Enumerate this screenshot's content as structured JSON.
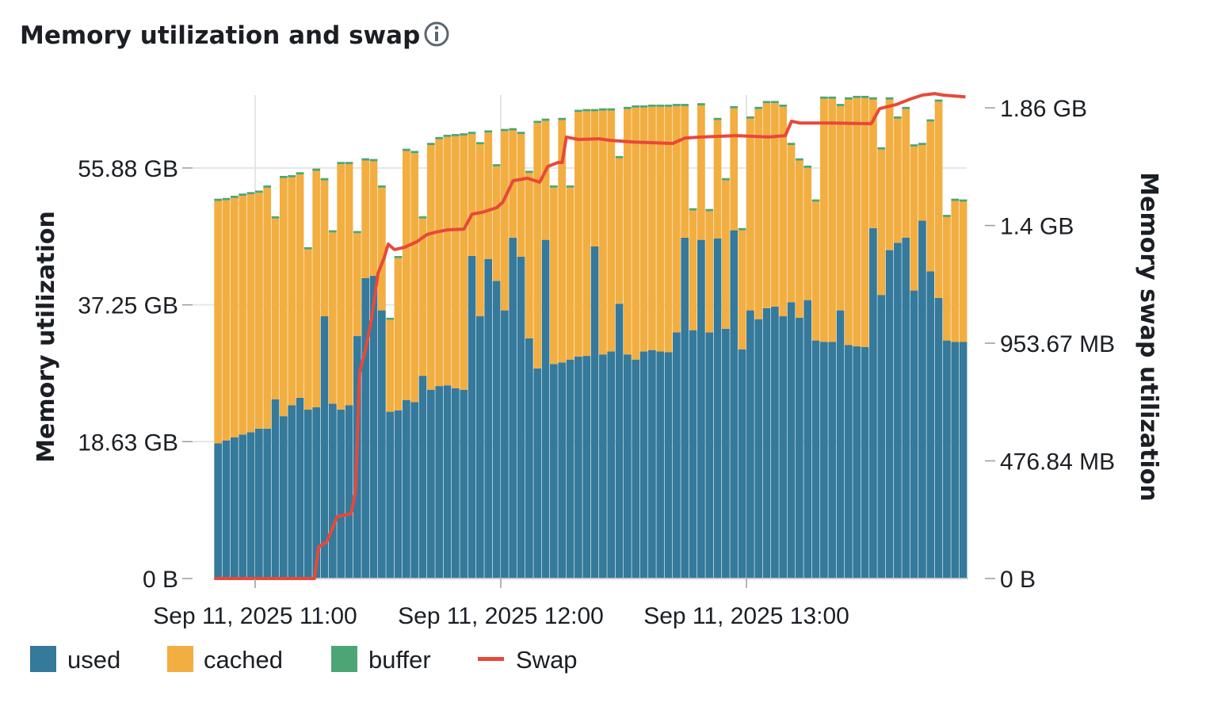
{
  "title": "Memory utilization and swap",
  "info_icon": "info-circle-icon",
  "chart_data": {
    "type": "bar",
    "stacked": true,
    "left_axis": {
      "label": "Memory utilization",
      "unit": "GB",
      "ticks": [
        0,
        18.63,
        37.25,
        55.88
      ],
      "tick_labels": [
        "0 B",
        "18.63 GB",
        "37.25 GB",
        "55.88 GB"
      ],
      "range": [
        0,
        65.8
      ]
    },
    "right_axis": {
      "label": "Memory swap utilization",
      "unit": "MB",
      "ticks": [
        0,
        476.84,
        953.67,
        1430.51,
        1907.35
      ],
      "tick_labels": [
        "0 B",
        "476.84 MB",
        "953.67 MB",
        "1.4 GB",
        "1.86 GB"
      ],
      "range": [
        0,
        1959
      ]
    },
    "x_axis": {
      "ticks": [
        "11:00",
        "12:00",
        "13:00"
      ],
      "tick_labels": [
        "Sep 11, 2025 11:00",
        "Sep 11, 2025 12:00",
        "Sep 11, 2025 13:00"
      ],
      "range": [
        "10:50",
        "13:54"
      ]
    },
    "grid": true,
    "legend_position": "bottom-left",
    "times": [
      "10:50",
      "10:52",
      "10:54",
      "10:56",
      "10:58",
      "11:00",
      "11:02",
      "11:04",
      "11:06",
      "11:08",
      "11:10",
      "11:12",
      "11:14",
      "11:16",
      "11:18",
      "11:20",
      "11:22",
      "11:24",
      "11:26",
      "11:28",
      "11:30",
      "11:32",
      "11:34",
      "11:36",
      "11:38",
      "11:40",
      "11:42",
      "11:44",
      "11:46",
      "11:48",
      "11:50",
      "11:52",
      "11:54",
      "11:56",
      "11:58",
      "12:00",
      "12:02",
      "12:04",
      "12:06",
      "12:08",
      "12:10",
      "12:12",
      "12:14",
      "12:16",
      "12:18",
      "12:20",
      "12:22",
      "12:24",
      "12:26",
      "12:28",
      "12:30",
      "12:32",
      "12:34",
      "12:36",
      "12:38",
      "12:40",
      "12:42",
      "12:44",
      "12:46",
      "12:48",
      "12:50",
      "12:52",
      "12:54",
      "12:56",
      "12:58",
      "13:00",
      "13:02",
      "13:04",
      "13:06",
      "13:08",
      "13:10",
      "13:12",
      "13:14",
      "13:16",
      "13:18",
      "13:20",
      "13:22",
      "13:24",
      "13:26",
      "13:28",
      "13:30",
      "13:32",
      "13:34",
      "13:36",
      "13:38",
      "13:40",
      "13:42",
      "13:44",
      "13:46",
      "13:48",
      "13:50",
      "13:52"
    ],
    "series": [
      {
        "name": "used",
        "color": "#35799b",
        "axis": "left",
        "values": [
          18.4,
          18.8,
          19.2,
          19.6,
          19.9,
          20.4,
          20.4,
          24.4,
          22.1,
          23.6,
          24.6,
          23.0,
          23.3,
          35.7,
          23.8,
          23.0,
          23.6,
          33.0,
          40.9,
          41.2,
          36.5,
          22.7,
          22.9,
          24.3,
          24.0,
          27.6,
          25.7,
          26.2,
          26.3,
          25.9,
          25.7,
          43.9,
          35.7,
          43.5,
          40.5,
          36.5,
          46.4,
          43.8,
          32.7,
          28.6,
          46.1,
          29.2,
          29.4,
          29.8,
          30.2,
          30.3,
          45.2,
          30.5,
          30.9,
          37.4,
          30.5,
          29.8,
          30.9,
          31.1,
          30.9,
          30.8,
          33.5,
          46.4,
          33.8,
          46.1,
          33.5,
          46.3,
          34.0,
          47.4,
          31.2,
          36.5,
          35.3,
          36.8,
          37.0,
          35.7,
          37.6,
          35.5,
          37.9,
          32.4,
          32.2,
          32.2,
          36.5,
          31.8,
          31.6,
          31.5,
          47.7,
          38.6,
          44.7,
          45.7,
          46.4,
          39.2,
          48.7,
          41.8,
          38.2,
          32.4,
          32.2,
          32.2
        ]
      },
      {
        "name": "cached",
        "color": "#f2ae40",
        "axis": "left",
        "values": [
          33.0,
          32.7,
          32.6,
          32.5,
          32.4,
          32.1,
          32.8,
          24.6,
          32.4,
          31.0,
          30.4,
          21.8,
          32.2,
          18.5,
          23.3,
          33.4,
          32.8,
          14.0,
          16.0,
          15.6,
          16.7,
          12.5,
          20.7,
          33.9,
          33.9,
          21.4,
          33.3,
          33.6,
          33.8,
          34.3,
          34.6,
          16.6,
          23.4,
          17.2,
          15.6,
          24.4,
          14.6,
          16.7,
          22.5,
          33.4,
          16.2,
          24.0,
          33.0,
          23.4,
          33.3,
          33.3,
          18.4,
          33.2,
          32.8,
          19.8,
          33.4,
          34.3,
          33.2,
          33.1,
          33.3,
          33.4,
          30.8,
          17.9,
          16.3,
          18.3,
          16.5,
          16.1,
          20.2,
          16.6,
          16.2,
          26.1,
          28.6,
          27.9,
          27.7,
          28.5,
          21.4,
          21.4,
          18.0,
          18.9,
          33.1,
          33.1,
          27.8,
          33.4,
          33.8,
          33.9,
          17.5,
          19.8,
          20.5,
          16.9,
          17.5,
          19.6,
          10.3,
          20.4,
          26.7,
          16.8,
          19.2,
          19.1
        ]
      },
      {
        "name": "buffer",
        "color": "#4ca574",
        "axis": "left",
        "values": [
          0.3,
          0.3,
          0.3,
          0.3,
          0.3,
          0.3,
          0.3,
          0.3,
          0.3,
          0.3,
          0.3,
          0.3,
          0.3,
          0.3,
          0.3,
          0.3,
          0.3,
          0.3,
          0.3,
          0.3,
          0.3,
          0.3,
          0.3,
          0.3,
          0.3,
          0.3,
          0.3,
          0.3,
          0.3,
          0.3,
          0.3,
          0.3,
          0.3,
          0.3,
          0.3,
          0.3,
          0.3,
          0.3,
          0.3,
          0.3,
          0.3,
          0.3,
          0.3,
          0.3,
          0.3,
          0.3,
          0.3,
          0.3,
          0.3,
          0.3,
          0.3,
          0.3,
          0.3,
          0.3,
          0.3,
          0.3,
          0.3,
          0.3,
          0.3,
          0.3,
          0.3,
          0.3,
          0.3,
          0.3,
          0.3,
          0.3,
          0.3,
          0.3,
          0.3,
          0.3,
          0.3,
          0.3,
          0.3,
          0.3,
          0.3,
          0.3,
          0.3,
          0.3,
          0.3,
          0.3,
          0.3,
          0.3,
          0.3,
          0.3,
          0.3,
          0.3,
          0.3,
          0.3,
          0.3,
          0.3,
          0.3,
          0.3
        ]
      }
    ],
    "line_series": {
      "name": "Swap",
      "color": "#e8483a",
      "axis": "right",
      "type": "line",
      "x": [
        "10:50:00",
        "11:14:30",
        "11:15:30",
        "11:17:30",
        "11:20:00",
        "11:23:30",
        "11:24:30",
        "11:25:30",
        "11:27:00",
        "11:28:30",
        "11:30:00",
        "11:31:30",
        "11:32:30",
        "11:34:00",
        "11:36:30",
        "11:39:30",
        "11:42:00",
        "11:44:00",
        "11:47:00",
        "11:51:00",
        "11:53:00",
        "11:55:30",
        "11:59:00",
        "12:00:30",
        "12:03:00",
        "12:06:30",
        "12:09:30",
        "12:11:30",
        "12:14:00",
        "12:15:00",
        "12:16:00",
        "12:19:00",
        "12:24:00",
        "12:26:30",
        "12:32:30",
        "12:42:00",
        "12:45:00",
        "12:49:00",
        "12:57:30",
        "13:05:30",
        "13:09:30",
        "13:11:00",
        "13:13:00",
        "13:21:00",
        "13:30:30",
        "13:32:30",
        "13:36:30",
        "13:40:00",
        "13:43:00",
        "13:46:00",
        "13:48:00",
        "13:53:30"
      ],
      "values": [
        0,
        0,
        128,
        148,
        250,
        263,
        353,
        835,
        931,
        1060,
        1236,
        1300,
        1355,
        1333,
        1342,
        1365,
        1394,
        1403,
        1413,
        1416,
        1477,
        1484,
        1503,
        1525,
        1612,
        1622,
        1606,
        1670,
        1686,
        1686,
        1789,
        1779,
        1782,
        1776,
        1769,
        1763,
        1785,
        1789,
        1795,
        1789,
        1795,
        1853,
        1846,
        1846,
        1843,
        1904,
        1920,
        1943,
        1959,
        1965,
        1959,
        1952
      ]
    }
  },
  "legend": [
    {
      "label": "used",
      "color": "#35799b"
    },
    {
      "label": "cached",
      "color": "#f2ae40"
    },
    {
      "label": "buffer",
      "color": "#4ca574"
    },
    {
      "label": "Swap",
      "color": "#e8483a"
    }
  ]
}
